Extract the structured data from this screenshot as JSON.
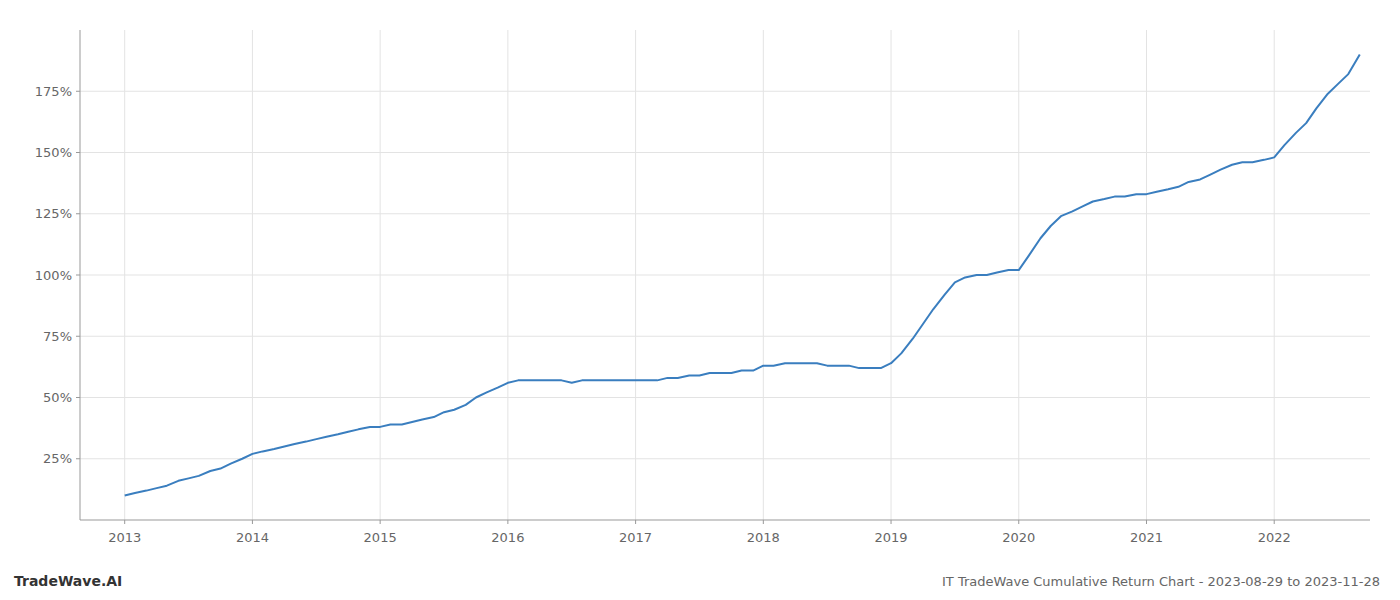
{
  "chart_data": {
    "type": "line",
    "title": "IT TradeWave Cumulative Return Chart - 2023-08-29 to 2023-11-28",
    "annotations": [
      "TradeWave.AI"
    ],
    "color": "#3a7ebf",
    "grid": true,
    "x": [
      2013.0,
      2013.08,
      2013.17,
      2013.25,
      2013.33,
      2013.42,
      2013.5,
      2013.58,
      2013.67,
      2013.75,
      2013.83,
      2013.92,
      2014.0,
      2014.08,
      2014.17,
      2014.25,
      2014.33,
      2014.42,
      2014.5,
      2014.58,
      2014.67,
      2014.75,
      2014.83,
      2014.92,
      2015.0,
      2015.08,
      2015.17,
      2015.25,
      2015.33,
      2015.42,
      2015.5,
      2015.58,
      2015.67,
      2015.75,
      2015.83,
      2015.92,
      2016.0,
      2016.08,
      2016.17,
      2016.25,
      2016.33,
      2016.42,
      2016.5,
      2016.58,
      2016.67,
      2016.75,
      2016.83,
      2016.92,
      2017.0,
      2017.08,
      2017.17,
      2017.25,
      2017.33,
      2017.42,
      2017.5,
      2017.58,
      2017.67,
      2017.75,
      2017.83,
      2017.92,
      2018.0,
      2018.08,
      2018.17,
      2018.25,
      2018.33,
      2018.42,
      2018.5,
      2018.58,
      2018.67,
      2018.75,
      2018.83,
      2018.92,
      2019.0,
      2019.08,
      2019.17,
      2019.25,
      2019.33,
      2019.42,
      2019.5,
      2019.58,
      2019.67,
      2019.75,
      2019.83,
      2019.92,
      2020.0,
      2020.08,
      2020.17,
      2020.25,
      2020.33,
      2020.42,
      2020.5,
      2020.58,
      2020.67,
      2020.75,
      2020.83,
      2020.92,
      2021.0,
      2021.08,
      2021.17,
      2021.25,
      2021.33,
      2021.42,
      2021.5,
      2021.58,
      2021.67,
      2021.75,
      2021.83,
      2021.92,
      2022.0,
      2022.08,
      2022.17,
      2022.25,
      2022.33,
      2022.42,
      2022.5,
      2022.58,
      2022.67
    ],
    "values": [
      10,
      11,
      12,
      13,
      14,
      16,
      17,
      18,
      20,
      21,
      23,
      25,
      27,
      28,
      29,
      30,
      31,
      32,
      33,
      34,
      35,
      36,
      37,
      38,
      38,
      39,
      39,
      40,
      41,
      42,
      44,
      45,
      47,
      50,
      52,
      54,
      56,
      57,
      57,
      57,
      57,
      57,
      56,
      57,
      57,
      57,
      57,
      57,
      57,
      57,
      57,
      58,
      58,
      59,
      59,
      60,
      60,
      60,
      61,
      61,
      63,
      63,
      64,
      64,
      64,
      64,
      63,
      63,
      63,
      62,
      62,
      62,
      64,
      68,
      74,
      80,
      86,
      92,
      97,
      99,
      100,
      100,
      101,
      102,
      102,
      108,
      115,
      120,
      124,
      126,
      128,
      130,
      131,
      132,
      132,
      133,
      133,
      134,
      135,
      136,
      138,
      139,
      141,
      143,
      145,
      146,
      146,
      147,
      148,
      153,
      158,
      162,
      168,
      174,
      178,
      182,
      190
    ],
    "xlim": [
      2012.65,
      2022.75
    ],
    "ylim": [
      0,
      200
    ],
    "xticks": [
      2013,
      2014,
      2015,
      2016,
      2017,
      2018,
      2019,
      2020,
      2021,
      2022
    ],
    "yticks": [
      {
        "value": 25,
        "label": "25%"
      },
      {
        "value": 50,
        "label": "50%"
      },
      {
        "value": 75,
        "label": "75%"
      },
      {
        "value": 100,
        "label": "100%"
      },
      {
        "value": 125,
        "label": "125%"
      },
      {
        "value": 150,
        "label": "150%"
      },
      {
        "value": 175,
        "label": "175%"
      }
    ]
  }
}
